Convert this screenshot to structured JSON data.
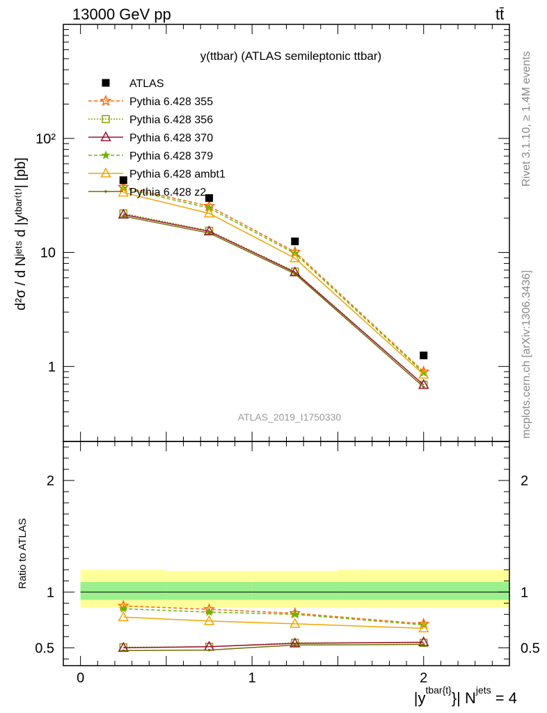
{
  "header": {
    "left_label": "13000 GeV pp",
    "right_label": "tt̄"
  },
  "side_labels": {
    "rivet": "Rivet 3.1.10, ≥ 1.4M events",
    "mcplots": "mcplots.cern.ch [arXiv:1306.3436]"
  },
  "chart_data": {
    "type": "line",
    "title": "y(ttbar) (ATLAS semileptonic ttbar)",
    "watermark": "ATLAS_2019_I1750330",
    "ylabel": "d²σ / d Nʲᵉᵗˢ d |yᵗᵇᵃʳ⁽ᵗ⁾| [pb]",
    "ratio_ylabel": "Ratio to ATLAS",
    "xlabel": "|y^{tbar{t}}| N^{jets} = 4",
    "xlabel_parts": {
      "main": "|y",
      "sup": "tbar{t}",
      "mid": "}| N",
      "sup2": "jets",
      "tail": "= 4"
    },
    "yscale": "log",
    "xlim": [
      -0.1,
      2.5
    ],
    "ylim": [
      0.22,
      1000
    ],
    "ratio_ylim": [
      0.34,
      2.35
    ],
    "x_ticks": [
      "0",
      "1",
      "2"
    ],
    "y_ticks": [
      "1",
      "10",
      "10²"
    ],
    "ratio_ticks": [
      "0.5",
      "1",
      "2"
    ],
    "bins": [
      [
        0,
        0.5
      ],
      [
        0.5,
        1.0
      ],
      [
        1.0,
        1.5
      ],
      [
        1.5,
        2.5
      ]
    ],
    "x": [
      0.25,
      0.75,
      1.25,
      2.0
    ],
    "data": {
      "name": "ATLAS",
      "values": [
        43.0,
        30.0,
        12.5,
        1.25
      ],
      "band_inner": [
        [
          0.93,
          1.09
        ],
        [
          0.93,
          1.09
        ],
        [
          0.93,
          1.09
        ],
        [
          0.93,
          1.09
        ]
      ],
      "band_outer": [
        [
          0.86,
          1.2
        ],
        [
          0.86,
          1.19
        ],
        [
          0.86,
          1.19
        ],
        [
          0.86,
          1.2
        ]
      ]
    },
    "series": [
      {
        "name": "Pythia 6.428 355",
        "color": "#ff6600",
        "marker": "star",
        "dash": "5,3",
        "values": [
          37.5,
          25.5,
          10.1,
          0.9
        ],
        "ratio": [
          0.875,
          0.845,
          0.81,
          0.715
        ]
      },
      {
        "name": "Pythia 6.428 356",
        "color": "#8da000",
        "marker": "square",
        "dash": "2,2",
        "values": [
          22.0,
          15.5,
          6.8,
          0.69
        ],
        "ratio": [
          0.505,
          0.51,
          0.545,
          0.545
        ]
      },
      {
        "name": "Pythia 6.428 370",
        "color": "#9b1030",
        "marker": "triangle",
        "dash": "",
        "values": [
          21.5,
          15.3,
          6.7,
          0.69
        ],
        "ratio": [
          0.5,
          0.51,
          0.54,
          0.55
        ]
      },
      {
        "name": "Pythia 6.428 379",
        "color": "#6cb600",
        "marker": "smallstar",
        "dash": "5,3",
        "values": [
          36.5,
          24.5,
          9.8,
          0.88
        ],
        "ratio": [
          0.85,
          0.82,
          0.8,
          0.705
        ]
      },
      {
        "name": "Pythia 6.428 ambt1",
        "color": "#f2a300",
        "marker": "triangle",
        "dash": "",
        "values": [
          33.5,
          22.0,
          8.9,
          0.85
        ],
        "ratio": [
          0.775,
          0.74,
          0.715,
          0.675
        ]
      },
      {
        "name": "Pythia 6.428 z2",
        "color": "#6b6e00",
        "marker": "dot",
        "dash": "",
        "values": [
          20.8,
          14.8,
          6.5,
          0.66
        ],
        "ratio": [
          0.475,
          0.48,
          0.525,
          0.53
        ]
      }
    ]
  }
}
